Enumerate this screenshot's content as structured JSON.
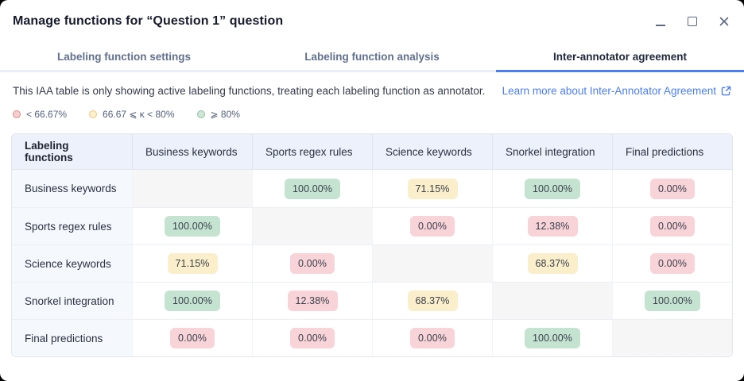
{
  "window": {
    "title": "Manage functions for “Question 1” question",
    "controls": [
      "minimize",
      "maximize",
      "close"
    ]
  },
  "tabs": {
    "items": [
      {
        "label": "Labeling function settings",
        "active": false
      },
      {
        "label": "Labeling function analysis",
        "active": false
      },
      {
        "label": "Inter-annotator agreement",
        "active": true
      }
    ],
    "active_underline_color": "#4b7ff0"
  },
  "description": {
    "text": "This IAA table is only showing active labeling functions, treating each labeling function as annotator.",
    "link_label": "Learn more about Inter-Annotator Agreement",
    "link_icon": "external-link",
    "link_color": "#4a7df0"
  },
  "legend": {
    "items": [
      {
        "label": "< 66.67%",
        "level": "low",
        "dot_fill": "#f6cdd0",
        "dot_border": "#e08a8a"
      },
      {
        "label": "66.67 ⩽ κ < 80%",
        "level": "mid",
        "dot_fill": "#fdf0cd",
        "dot_border": "#ecc977"
      },
      {
        "label": "⩾ 80%",
        "level": "high",
        "dot_fill": "#cde6d6",
        "dot_border": "#8fc2a1"
      }
    ]
  },
  "table": {
    "columns": [
      "Labeling functions",
      "Business keywords",
      "Sports regex rules",
      "Science keywords",
      "Snorkel integration",
      "Final predictions"
    ],
    "level_colors": {
      "low": "#f8d3d8",
      "mid": "#faeecb",
      "high": "#c5e3d1"
    },
    "rows": [
      {
        "label": "Business keywords",
        "cells": [
          null,
          {
            "value": "100.00%",
            "level": "high"
          },
          {
            "value": "71.15%",
            "level": "mid"
          },
          {
            "value": "100.00%",
            "level": "high"
          },
          {
            "value": "0.00%",
            "level": "low"
          }
        ]
      },
      {
        "label": "Sports regex rules",
        "cells": [
          {
            "value": "100.00%",
            "level": "high"
          },
          null,
          {
            "value": "0.00%",
            "level": "low"
          },
          {
            "value": "12.38%",
            "level": "low"
          },
          {
            "value": "0.00%",
            "level": "low"
          }
        ]
      },
      {
        "label": "Science keywords",
        "cells": [
          {
            "value": "71.15%",
            "level": "mid"
          },
          {
            "value": "0.00%",
            "level": "low"
          },
          null,
          {
            "value": "68.37%",
            "level": "mid"
          },
          {
            "value": "0.00%",
            "level": "low"
          }
        ]
      },
      {
        "label": "Snorkel integration",
        "cells": [
          {
            "value": "100.00%",
            "level": "high"
          },
          {
            "value": "12.38%",
            "level": "low"
          },
          {
            "value": "68.37%",
            "level": "mid"
          },
          null,
          {
            "value": "100.00%",
            "level": "high"
          }
        ]
      },
      {
        "label": "Final predictions",
        "cells": [
          {
            "value": "0.00%",
            "level": "low"
          },
          {
            "value": "0.00%",
            "level": "low"
          },
          {
            "value": "0.00%",
            "level": "low"
          },
          {
            "value": "100.00%",
            "level": "high"
          },
          null
        ]
      }
    ]
  }
}
